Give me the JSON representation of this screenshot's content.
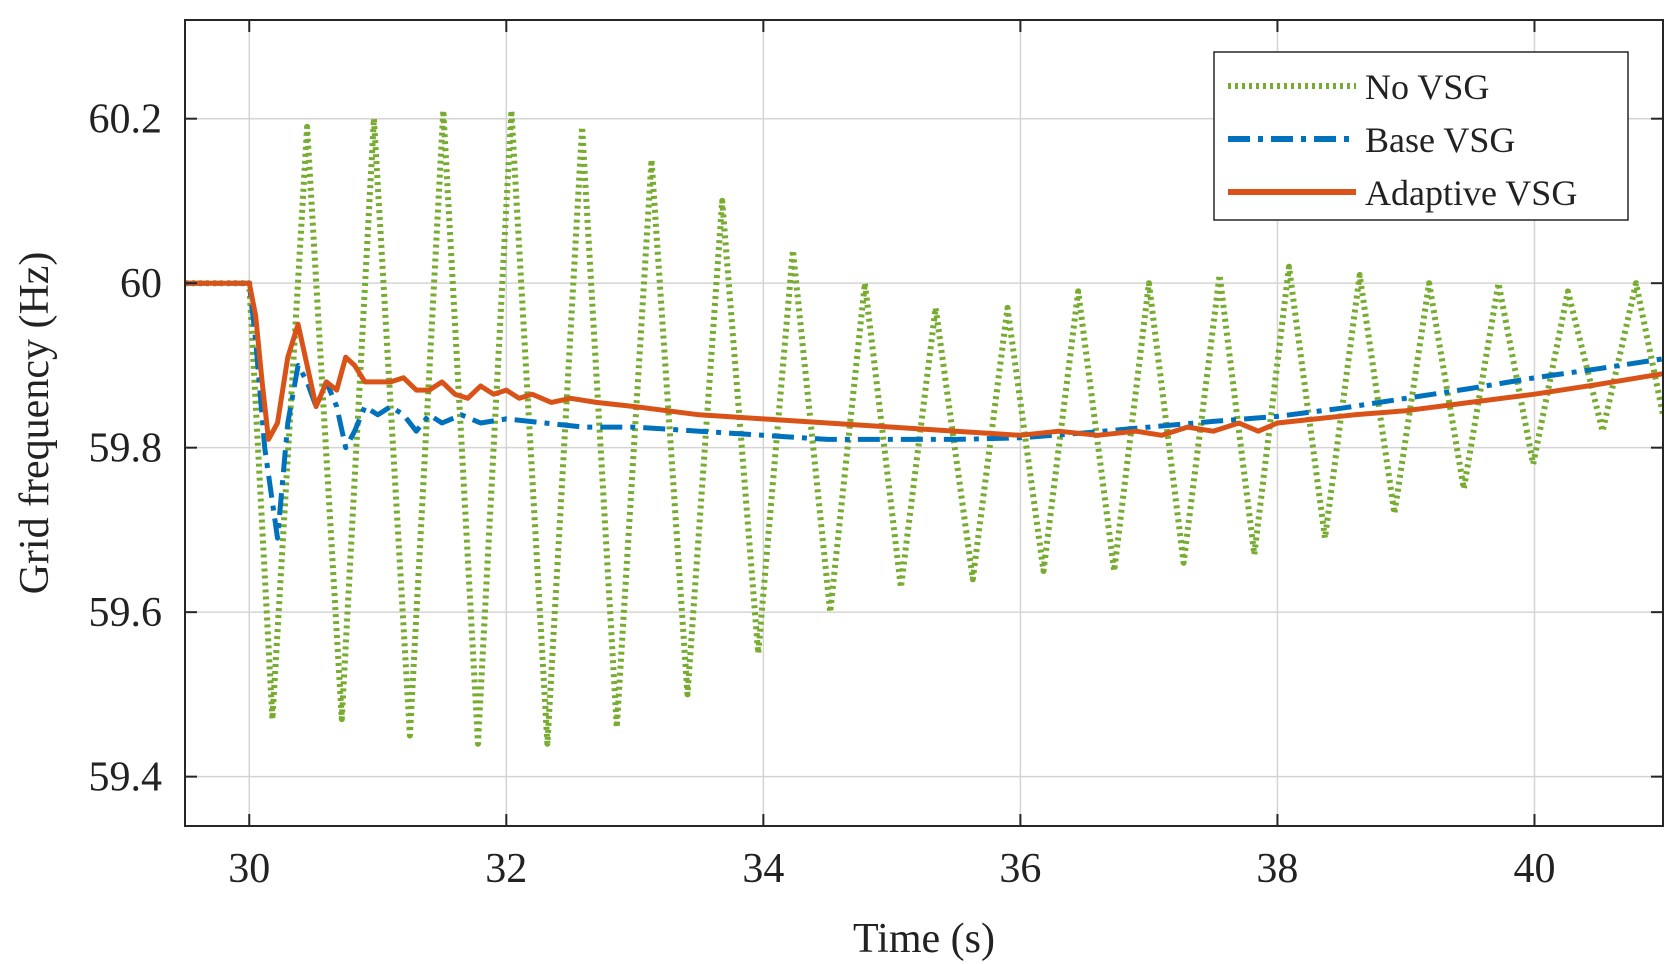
{
  "chart_data": {
    "type": "line",
    "xlabel": "Time (s)",
    "ylabel": "Grid frequency (Hz)",
    "xlim": [
      29.5,
      41
    ],
    "ylim": [
      59.34,
      60.32
    ],
    "xticks": [
      30,
      32,
      34,
      36,
      38,
      40
    ],
    "yticks": [
      59.4,
      59.6,
      59.8,
      60,
      60.2
    ],
    "xtick_labels": [
      "30",
      "32",
      "34",
      "36",
      "38",
      "40"
    ],
    "ytick_labels": [
      "59.4",
      "59.6",
      "59.8",
      "60",
      "60.2"
    ],
    "grid": true,
    "legend_position": "top-right",
    "series": [
      {
        "name": "No VSG",
        "color": "#77AC30",
        "style": "dotted",
        "x": [
          29.5,
          30.0,
          30.0,
          30.18,
          30.45,
          30.72,
          30.97,
          31.25,
          31.51,
          31.78,
          32.04,
          32.32,
          32.59,
          32.86,
          33.13,
          33.41,
          33.68,
          33.96,
          34.23,
          34.52,
          34.79,
          35.07,
          35.34,
          35.63,
          35.9,
          36.18,
          36.45,
          36.73,
          37.0,
          37.27,
          37.55,
          37.82,
          38.09,
          38.37,
          38.64,
          38.91,
          39.18,
          39.45,
          39.72,
          39.99,
          40.26,
          40.53,
          40.79,
          41.0
        ],
        "y": [
          60.0,
          60.0,
          60.0,
          59.47,
          60.19,
          59.47,
          60.2,
          59.45,
          60.21,
          59.44,
          60.21,
          59.44,
          60.19,
          59.46,
          60.15,
          59.5,
          60.1,
          59.55,
          60.04,
          59.6,
          60.0,
          59.63,
          59.97,
          59.64,
          59.97,
          59.65,
          59.99,
          59.65,
          60.0,
          59.66,
          60.01,
          59.67,
          60.02,
          59.69,
          60.01,
          59.72,
          60.0,
          59.75,
          60.0,
          59.78,
          59.99,
          59.82,
          60.0,
          59.84
        ]
      },
      {
        "name": "Base VSG",
        "color": "#0072BD",
        "style": "dashdot",
        "x": [
          29.5,
          30.0,
          30.05,
          30.12,
          30.22,
          30.3,
          30.38,
          30.45,
          30.52,
          30.6,
          30.68,
          30.75,
          30.82,
          30.9,
          31.0,
          31.1,
          31.2,
          31.3,
          31.4,
          31.5,
          31.65,
          31.8,
          32.0,
          32.3,
          32.6,
          33.0,
          33.5,
          34.0,
          34.5,
          35.0,
          35.5,
          36.0,
          36.5,
          37.0,
          37.5,
          38.0,
          38.5,
          39.0,
          39.5,
          40.0,
          40.5,
          41.0
        ],
        "y": [
          60.0,
          60.0,
          59.93,
          59.8,
          59.69,
          59.83,
          59.9,
          59.88,
          59.85,
          59.88,
          59.85,
          59.8,
          59.82,
          59.85,
          59.84,
          59.85,
          59.84,
          59.82,
          59.84,
          59.83,
          59.84,
          59.83,
          59.835,
          59.83,
          59.825,
          59.825,
          59.82,
          59.815,
          59.81,
          59.81,
          59.81,
          59.812,
          59.818,
          59.825,
          59.832,
          59.838,
          59.848,
          59.86,
          59.872,
          59.885,
          59.896,
          59.908
        ]
      },
      {
        "name": "Adaptive VSG",
        "color": "#D95319",
        "style": "solid",
        "x": [
          29.5,
          30.0,
          30.05,
          30.1,
          30.15,
          30.22,
          30.3,
          30.38,
          30.45,
          30.52,
          30.6,
          30.68,
          30.75,
          30.82,
          30.9,
          31.0,
          31.1,
          31.2,
          31.3,
          31.4,
          31.5,
          31.6,
          31.7,
          31.8,
          31.9,
          32.0,
          32.1,
          32.2,
          32.35,
          32.5,
          32.7,
          33.0,
          33.5,
          34.0,
          34.5,
          35.0,
          35.5,
          36.0,
          36.3,
          36.6,
          36.9,
          37.1,
          37.3,
          37.5,
          37.7,
          37.85,
          38.0,
          38.3,
          38.6,
          39.0,
          39.5,
          40.0,
          40.5,
          41.0
        ],
        "y": [
          60.0,
          60.0,
          59.96,
          59.88,
          59.81,
          59.83,
          59.91,
          59.95,
          59.9,
          59.85,
          59.88,
          59.87,
          59.91,
          59.9,
          59.88,
          59.88,
          59.88,
          59.885,
          59.87,
          59.87,
          59.88,
          59.865,
          59.86,
          59.875,
          59.865,
          59.87,
          59.86,
          59.865,
          59.855,
          59.86,
          59.855,
          59.85,
          59.84,
          59.835,
          59.83,
          59.825,
          59.82,
          59.815,
          59.82,
          59.815,
          59.82,
          59.815,
          59.825,
          59.82,
          59.83,
          59.82,
          59.83,
          59.835,
          59.84,
          59.845,
          59.855,
          59.865,
          59.877,
          59.89
        ]
      }
    ]
  }
}
